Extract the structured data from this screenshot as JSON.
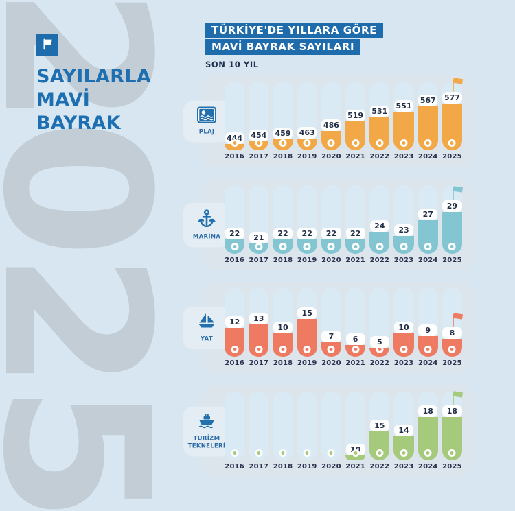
{
  "page": {
    "watermark": "2025",
    "background": "#d7e6f0"
  },
  "theme": {
    "brand_blue": "#1e6cab",
    "title_text_blue": "#1d6fb2",
    "navy_text": "#23304b",
    "panel_bg": "#dce5ec",
    "track_bg": "#d9eaf5",
    "tab_bg": "#e5edf4",
    "watermark_color": "#c3cdd6"
  },
  "brand": {
    "logo_icon": "flag-icon",
    "title_lines": [
      "SAYILARLA",
      "MAVİ",
      "BAYRAK"
    ]
  },
  "header": {
    "title_line1": "TÜRKİYE'DE YILLARA GÖRE",
    "title_line2": "MAVİ BAYRAK SAYILARI",
    "subtitle": "SON 10 YIL"
  },
  "chart_data": [
    {
      "type": "bar",
      "id": "plaj",
      "label": "PLAJ",
      "icon": "beach-icon",
      "color": "#f3a847",
      "categories": [
        "2016",
        "2017",
        "2018",
        "2019",
        "2020",
        "2021",
        "2022",
        "2023",
        "2024",
        "2025"
      ],
      "values": [
        444,
        454,
        459,
        463,
        486,
        519,
        531,
        551,
        567,
        577
      ],
      "flag_year": "2025",
      "bar_scale": {
        "vmin": 444,
        "vmax": 577,
        "min_pct": 26,
        "max_pct": 85
      }
    },
    {
      "type": "bar",
      "id": "marina",
      "label": "MARİNA",
      "icon": "anchor-icon",
      "color": "#83c6d1",
      "categories": [
        "2016",
        "2017",
        "2018",
        "2019",
        "2020",
        "2021",
        "2022",
        "2023",
        "2024",
        "2025"
      ],
      "values": [
        22,
        21,
        22,
        22,
        22,
        22,
        24,
        23,
        27,
        29
      ],
      "flag_year": "2025",
      "bar_scale": {
        "vmin": 21,
        "vmax": 29,
        "min_pct": 32,
        "max_pct": 78
      }
    },
    {
      "type": "bar",
      "id": "yat",
      "label": "YAT",
      "icon": "sailboat-icon",
      "color": "#ee7a62",
      "categories": [
        "2016",
        "2017",
        "2018",
        "2019",
        "2020",
        "2021",
        "2022",
        "2023",
        "2024",
        "2025"
      ],
      "values": [
        12,
        13,
        10,
        15,
        7,
        6,
        5,
        10,
        9,
        8
      ],
      "flag_year": "2025",
      "bar_scale": {
        "vmin": 5,
        "vmax": 15,
        "min_pct": 30,
        "max_pct": 72
      }
    },
    {
      "type": "bar",
      "id": "turizm-tekneleri",
      "label": "TURİZM TEKNELERİ",
      "icon": "ship-icon",
      "color": "#a6ca7c",
      "categories": [
        "2016",
        "2017",
        "2018",
        "2019",
        "2020",
        "2021",
        "2022",
        "2023",
        "2024",
        "2025"
      ],
      "values": [
        null,
        null,
        null,
        null,
        null,
        10,
        15,
        14,
        18,
        18
      ],
      "flag_year": "2025",
      "bar_scale": {
        "vmin": 10,
        "vmax": 18,
        "min_pct": 24,
        "max_pct": 80
      }
    }
  ]
}
